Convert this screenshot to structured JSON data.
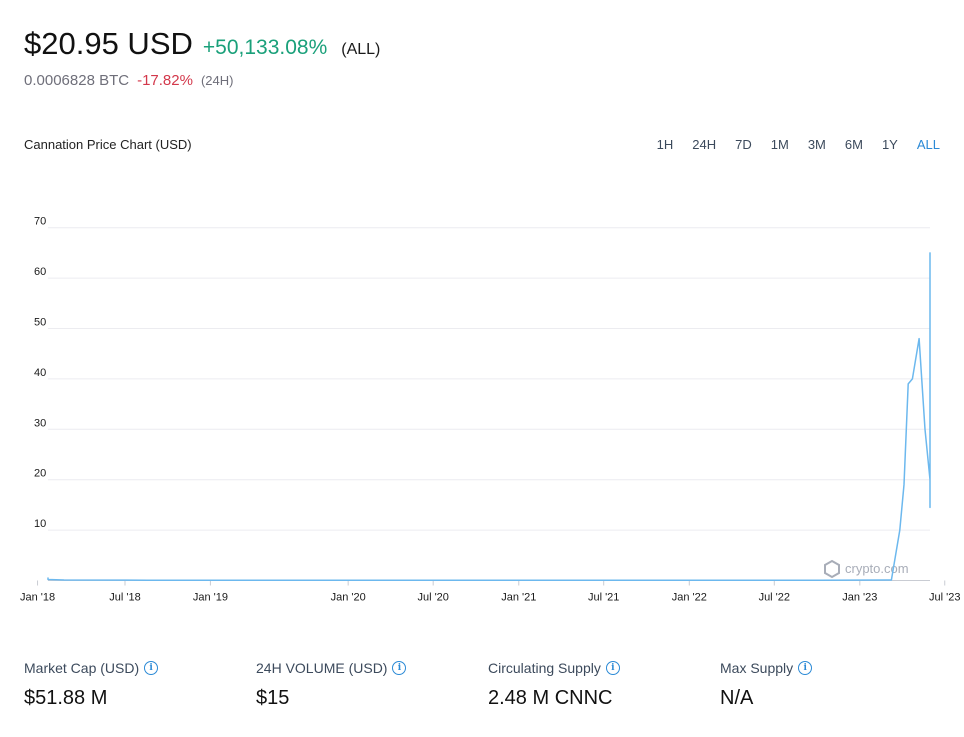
{
  "header": {
    "price": "$20.95 USD",
    "change_all": "+50,133.08%",
    "range_tag": "(ALL)",
    "btc_price": "0.0006828 BTC",
    "change_24h": "-17.82%",
    "sub_tag": "(24H)"
  },
  "chart_title": "Cannation Price Chart (USD)",
  "ranges": [
    "1H",
    "24H",
    "7D",
    "1M",
    "3M",
    "6M",
    "1Y",
    "ALL"
  ],
  "active_range": "ALL",
  "watermark": "crypto.com",
  "colors": {
    "line": "#6cb8ee",
    "up": "#1aa07a",
    "down": "#d3384b",
    "accent": "#2b8ad6"
  },
  "chart_data": {
    "type": "line",
    "x_tick_labels": [
      "Jan '18",
      "Jul '18",
      "Jan '19",
      "Jan '20",
      "Jul '20",
      "Jan '21",
      "Jul '21",
      "Jan '22",
      "Jul '22",
      "Jan '23",
      "Jul '23"
    ],
    "x_tick_positions": [
      0.0685,
      0.1726,
      0.2743,
      0.4383,
      0.5395,
      0.6414,
      0.7425,
      0.8444,
      0.9456,
      1.0474,
      1.1485
    ],
    "y_ticks": [
      10,
      20,
      30,
      40,
      50,
      60,
      70
    ],
    "ylim": [
      0,
      70
    ],
    "grid": true,
    "series": [
      {
        "x": [
          0,
          0.03,
          0.05,
          0.062,
          0.07,
          0.08,
          0.1,
          0.2,
          0.4,
          0.6,
          0.8,
          1.0,
          1.085,
          1.095,
          1.1,
          1.105,
          1.11,
          1.118,
          1.125,
          1.132,
          1.14,
          1.148,
          1.155,
          1.161
        ],
        "y": [
          0.2,
          0.2,
          0.25,
          0.5,
          0.3,
          0.2,
          0.1,
          0.05,
          0.05,
          0.05,
          0.05,
          0.05,
          0.1,
          10,
          19,
          39,
          40,
          48,
          30,
          20,
          14.5,
          38,
          65,
          21
        ]
      }
    ]
  },
  "stats": [
    {
      "label": "Market Cap (USD)",
      "value": "$51.88 M"
    },
    {
      "label": "24H VOLUME (USD)",
      "value": "$15"
    },
    {
      "label": "Circulating Supply",
      "value": "2.48 M CNNC"
    },
    {
      "label": "Max Supply",
      "value": "N/A"
    }
  ]
}
